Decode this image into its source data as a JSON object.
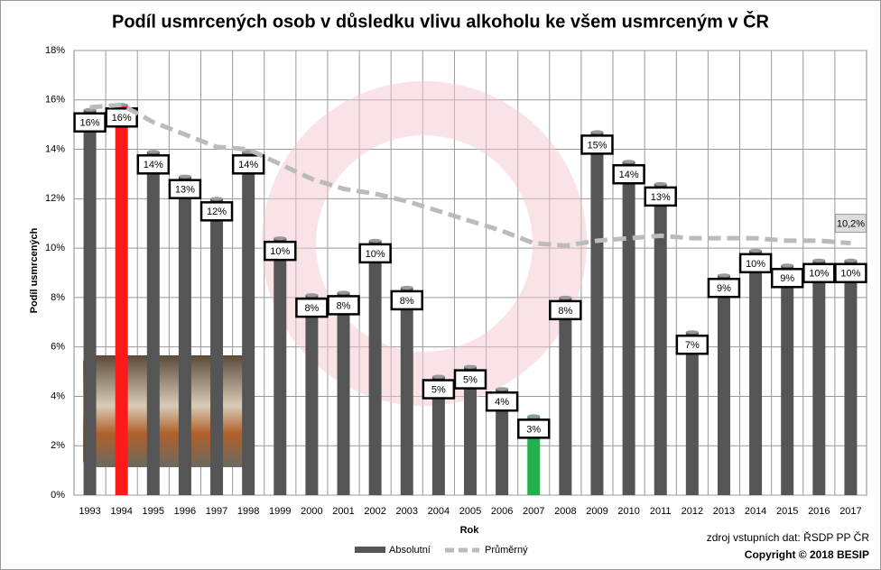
{
  "chart_data": {
    "type": "bar",
    "title": "Podíl usmrcených osob v důsledku vlivu alkoholu ke všem usmrceným v ČR",
    "x_label": "Rok",
    "y_label": "Podíl usmrcených",
    "source": "zdroj vstupních dat: ŘSDP PP ČR",
    "copyright": "Copyright © 2018 BESIP",
    "categories": [
      "1993",
      "1994",
      "1995",
      "1996",
      "1997",
      "1998",
      "1999",
      "2000",
      "2001",
      "2002",
      "2003",
      "2004",
      "2005",
      "2006",
      "2007",
      "2008",
      "2009",
      "2010",
      "2011",
      "2012",
      "2013",
      "2014",
      "2015",
      "2016",
      "2017"
    ],
    "series": [
      {
        "name": "Absolutní",
        "color": "#555555",
        "colors": [
          "#555555",
          "#ff1a1a",
          "#555555",
          "#555555",
          "#555555",
          "#555555",
          "#555555",
          "#555555",
          "#555555",
          "#555555",
          "#555555",
          "#555555",
          "#555555",
          "#555555",
          "#22b14c",
          "#555555",
          "#555555",
          "#555555",
          "#555555",
          "#555555",
          "#555555",
          "#555555",
          "#555555",
          "#555555",
          "#555555"
        ],
        "values": [
          15.6,
          15.8,
          13.9,
          12.9,
          12.0,
          13.9,
          10.4,
          8.1,
          8.2,
          10.3,
          8.4,
          4.8,
          5.2,
          4.3,
          3.2,
          8.0,
          14.7,
          13.5,
          12.6,
          6.6,
          8.9,
          9.9,
          9.3,
          9.5,
          9.5
        ],
        "value_labels": [
          "16%",
          "16%",
          "14%",
          "13%",
          "12%",
          "14%",
          "10%",
          "8%",
          "8%",
          "10%",
          "8%",
          "5%",
          "5%",
          "4%",
          "3%",
          "8%",
          "15%",
          "14%",
          "13%",
          "7%",
          "9%",
          "10%",
          "9%",
          "10%",
          "10%"
        ]
      },
      {
        "name": "Průměrný",
        "color": "#bbbbbb",
        "type": "line",
        "values": [
          15.7,
          15.8,
          15.1,
          14.6,
          14.1,
          14.0,
          13.4,
          12.8,
          12.4,
          12.2,
          11.9,
          11.5,
          11.1,
          10.7,
          10.2,
          10.1,
          10.3,
          10.4,
          10.5,
          10.4,
          10.4,
          10.4,
          10.3,
          10.3,
          10.2
        ],
        "value_labels": [
          null,
          null,
          null,
          null,
          null,
          null,
          null,
          null,
          null,
          null,
          null,
          null,
          null,
          null,
          null,
          null,
          null,
          null,
          null,
          null,
          null,
          null,
          null,
          null,
          "10,2%"
        ]
      }
    ],
    "ylim": [
      0,
      18
    ],
    "yticks": [
      {
        "value": 0,
        "label": "0%"
      },
      {
        "value": 2,
        "label": "2%"
      },
      {
        "value": 4,
        "label": "4%"
      },
      {
        "value": 6,
        "label": "6%"
      },
      {
        "value": 8,
        "label": "8%"
      },
      {
        "value": 10,
        "label": "10%"
      },
      {
        "value": 12,
        "label": "12%"
      },
      {
        "value": 14,
        "label": "14%"
      },
      {
        "value": 16,
        "label": "16%"
      },
      {
        "value": 18,
        "label": "18%"
      }
    ],
    "grid": true
  }
}
